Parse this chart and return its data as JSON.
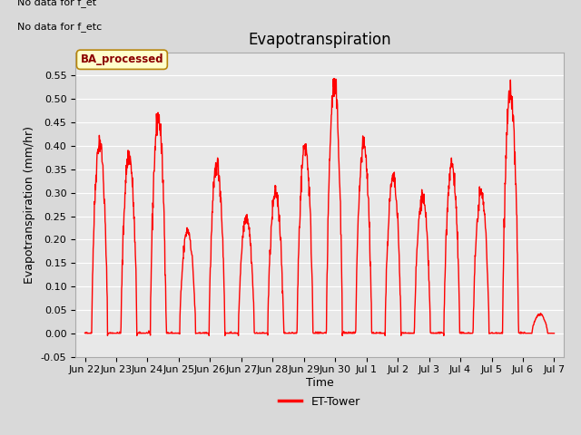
{
  "title": "Evapotranspiration",
  "ylabel": "Evapotranspiration (mm/hr)",
  "xlabel": "Time",
  "ylim": [
    -0.05,
    0.6
  ],
  "yticks": [
    -0.05,
    0.0,
    0.05,
    0.1,
    0.15,
    0.2,
    0.25,
    0.3,
    0.35,
    0.4,
    0.45,
    0.5,
    0.55
  ],
  "line_color": "red",
  "line_width": 1.0,
  "fig_facecolor": "#d9d9d9",
  "plot_bg_color": "#e8e8e8",
  "text_annotations": [
    "No data for f_et",
    "No data for f_etc"
  ],
  "legend_label": "ET-Tower",
  "box_label": "BA_processed",
  "box_facecolor": "#ffffcc",
  "box_edgecolor": "#b8860b",
  "title_fontsize": 12,
  "axis_label_fontsize": 9,
  "tick_fontsize": 8,
  "x_tick_labels": [
    "Jun 22",
    "Jun 23",
    "Jun 24",
    "Jun 25",
    "Jun 26",
    "Jun 27",
    "Jun 28",
    "Jun 29",
    "Jun 30",
    "Jul 1",
    "Jul 2",
    "Jul 3",
    "Jul 4",
    "Jul 5",
    "Jul 6",
    "Jul 7"
  ],
  "x_tick_positions": [
    0,
    1,
    2,
    3,
    4,
    5,
    6,
    7,
    8,
    9,
    10,
    11,
    12,
    13,
    14,
    15
  ],
  "peaks": [
    0.41,
    0.38,
    0.46,
    0.22,
    0.36,
    0.25,
    0.3,
    0.4,
    0.53,
    0.4,
    0.33,
    0.29,
    0.36,
    0.3,
    0.51,
    0.04
  ]
}
